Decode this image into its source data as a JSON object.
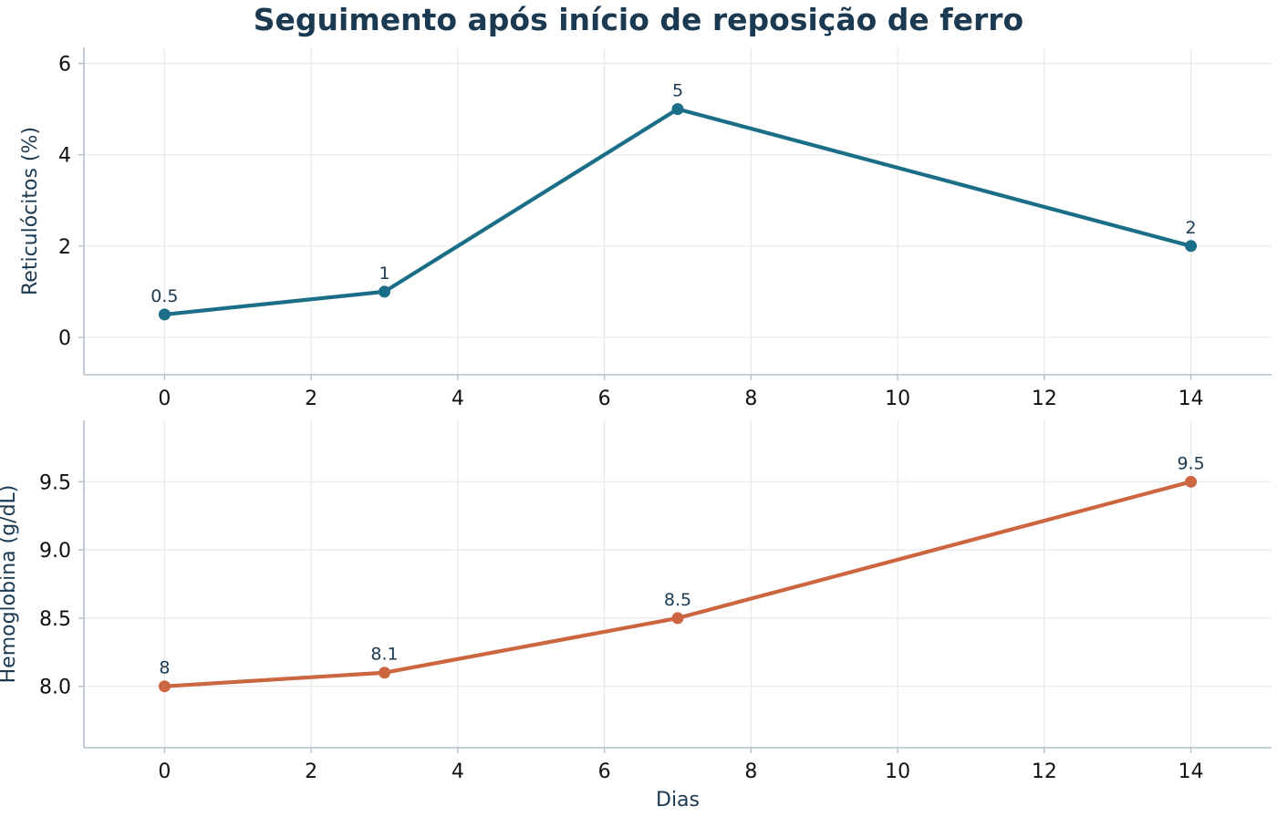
{
  "title": "Seguimento após início de reposição de ferro",
  "chart_data": [
    {
      "type": "line",
      "x": [
        0,
        3,
        7,
        14
      ],
      "series": [
        {
          "values": [
            0.5,
            1,
            5,
            2
          ],
          "labels": [
            "0.5",
            "1",
            "5",
            "2"
          ],
          "color": "#1b6e87"
        }
      ],
      "xlabel": "",
      "ylabel": "Reticulócitos (%)",
      "xlim": [
        -1.1,
        15.1
      ],
      "ylim": [
        -0.82,
        6.35
      ],
      "xticks": [
        0,
        2,
        4,
        6,
        8,
        10,
        12,
        14
      ],
      "yticks": [
        0,
        2,
        4,
        6
      ],
      "ytick_labels": [
        "0",
        "2",
        "4",
        "6"
      ],
      "grid": true
    },
    {
      "type": "line",
      "x": [
        0,
        3,
        7,
        14
      ],
      "series": [
        {
          "values": [
            8.0,
            8.1,
            8.5,
            9.5
          ],
          "labels": [
            "8",
            "8.1",
            "8.5",
            "9.5"
          ],
          "color": "#cc6640"
        }
      ],
      "xlabel": "Dias",
      "ylabel": "Hemoglobina (g/dL)",
      "xlim": [
        -1.1,
        15.1
      ],
      "ylim": [
        7.55,
        9.95
      ],
      "xticks": [
        0,
        2,
        4,
        6,
        8,
        10,
        12,
        14
      ],
      "yticks": [
        8.0,
        8.5,
        9.0,
        9.5
      ],
      "ytick_labels": [
        "8.0",
        "8.5",
        "9.0",
        "9.5"
      ],
      "grid": true
    }
  ]
}
